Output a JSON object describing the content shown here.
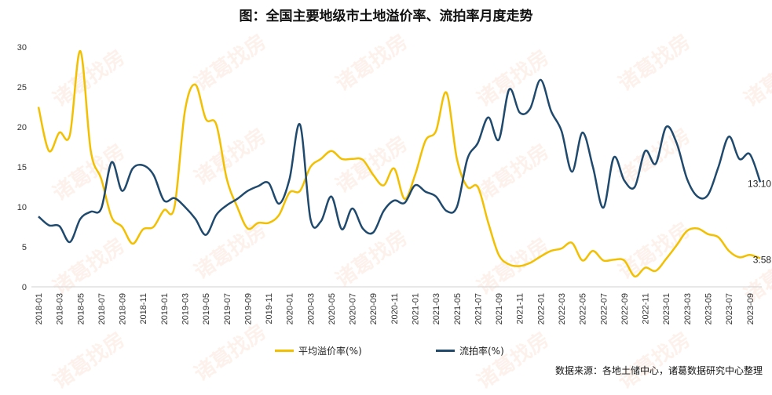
{
  "chart_data": {
    "type": "line",
    "title": "图：全国主要地级市土地溢价率、流拍率月度走势",
    "xlabel": "",
    "ylabel": "",
    "ylim": [
      0,
      30
    ],
    "yticks": [
      "0",
      "5",
      "10",
      "15",
      "20",
      "25",
      "30"
    ],
    "grid": false,
    "legend_position": "bottom",
    "start_month": "2018-01",
    "x_tick_labels": [
      "2018-01",
      "2018-03",
      "2018-05",
      "2018-07",
      "2018-09",
      "2018-11",
      "2019-01",
      "2019-03",
      "2019-05",
      "2019-07",
      "2019-09",
      "2019-11",
      "2020-01",
      "2020-03",
      "2020-05",
      "2020-07",
      "2020-09",
      "2020-11",
      "2021-01",
      "2021-03",
      "2021-05",
      "2021-07",
      "2021-09",
      "2021-11",
      "2022-01",
      "2022-03",
      "2022-05",
      "2022-07",
      "2022-09",
      "2022-11",
      "2023-01",
      "2023-03",
      "2023-05",
      "2023-07",
      "2023-09"
    ],
    "series": [
      {
        "name": "平均溢价率(%)",
        "color": "#f2c000",
        "last_label": "3.58",
        "values": [
          22.5,
          17,
          19.3,
          19,
          29.5,
          17,
          13.5,
          8.7,
          7.5,
          5.4,
          7.2,
          7.5,
          9.6,
          10,
          22,
          25.3,
          21,
          20.3,
          13.5,
          10,
          7.3,
          8,
          8,
          9,
          11.8,
          12,
          15,
          16,
          17,
          16,
          16,
          15.9,
          14,
          12.7,
          14.8,
          11,
          14,
          18.3,
          19.5,
          24.3,
          16,
          12.5,
          12.5,
          8,
          4,
          2.8,
          2.6,
          3,
          3.8,
          4.5,
          4.8,
          5.5,
          3.3,
          4.5,
          3.3,
          3.4,
          3.3,
          1.3,
          2.4,
          2,
          3.5,
          5.2,
          7,
          7.3,
          6.6,
          6.2,
          4.5,
          3.7,
          4.0,
          3.58
        ]
      },
      {
        "name": "流拍率(%)",
        "color": "#1f4a6e",
        "last_label": "13.10",
        "values": [
          8.8,
          7.7,
          7.6,
          5.6,
          8.5,
          9.4,
          9.8,
          15.6,
          12,
          14.8,
          15.2,
          14,
          10.8,
          11.1,
          10,
          8.5,
          6.5,
          9,
          10.2,
          11,
          12,
          12.6,
          13,
          10.4,
          13.5,
          20.3,
          8.5,
          8.2,
          11.3,
          7.2,
          9.8,
          7.3,
          6.8,
          9.5,
          10.8,
          10.5,
          12.7,
          11.9,
          11.3,
          9.5,
          10,
          16,
          18,
          21.2,
          18.4,
          24.7,
          21.8,
          22.3,
          25.9,
          22,
          19.5,
          14.4,
          19.3,
          15,
          9.9,
          16.2,
          13.3,
          12.5,
          17,
          15.4,
          20,
          18,
          13.5,
          11.3,
          11.5,
          15,
          18.8,
          16,
          16.6,
          13.1
        ]
      }
    ]
  },
  "source": "数据来源：各地土储中心，诸葛数据研究中心整理",
  "watermark": "诸葛找房"
}
